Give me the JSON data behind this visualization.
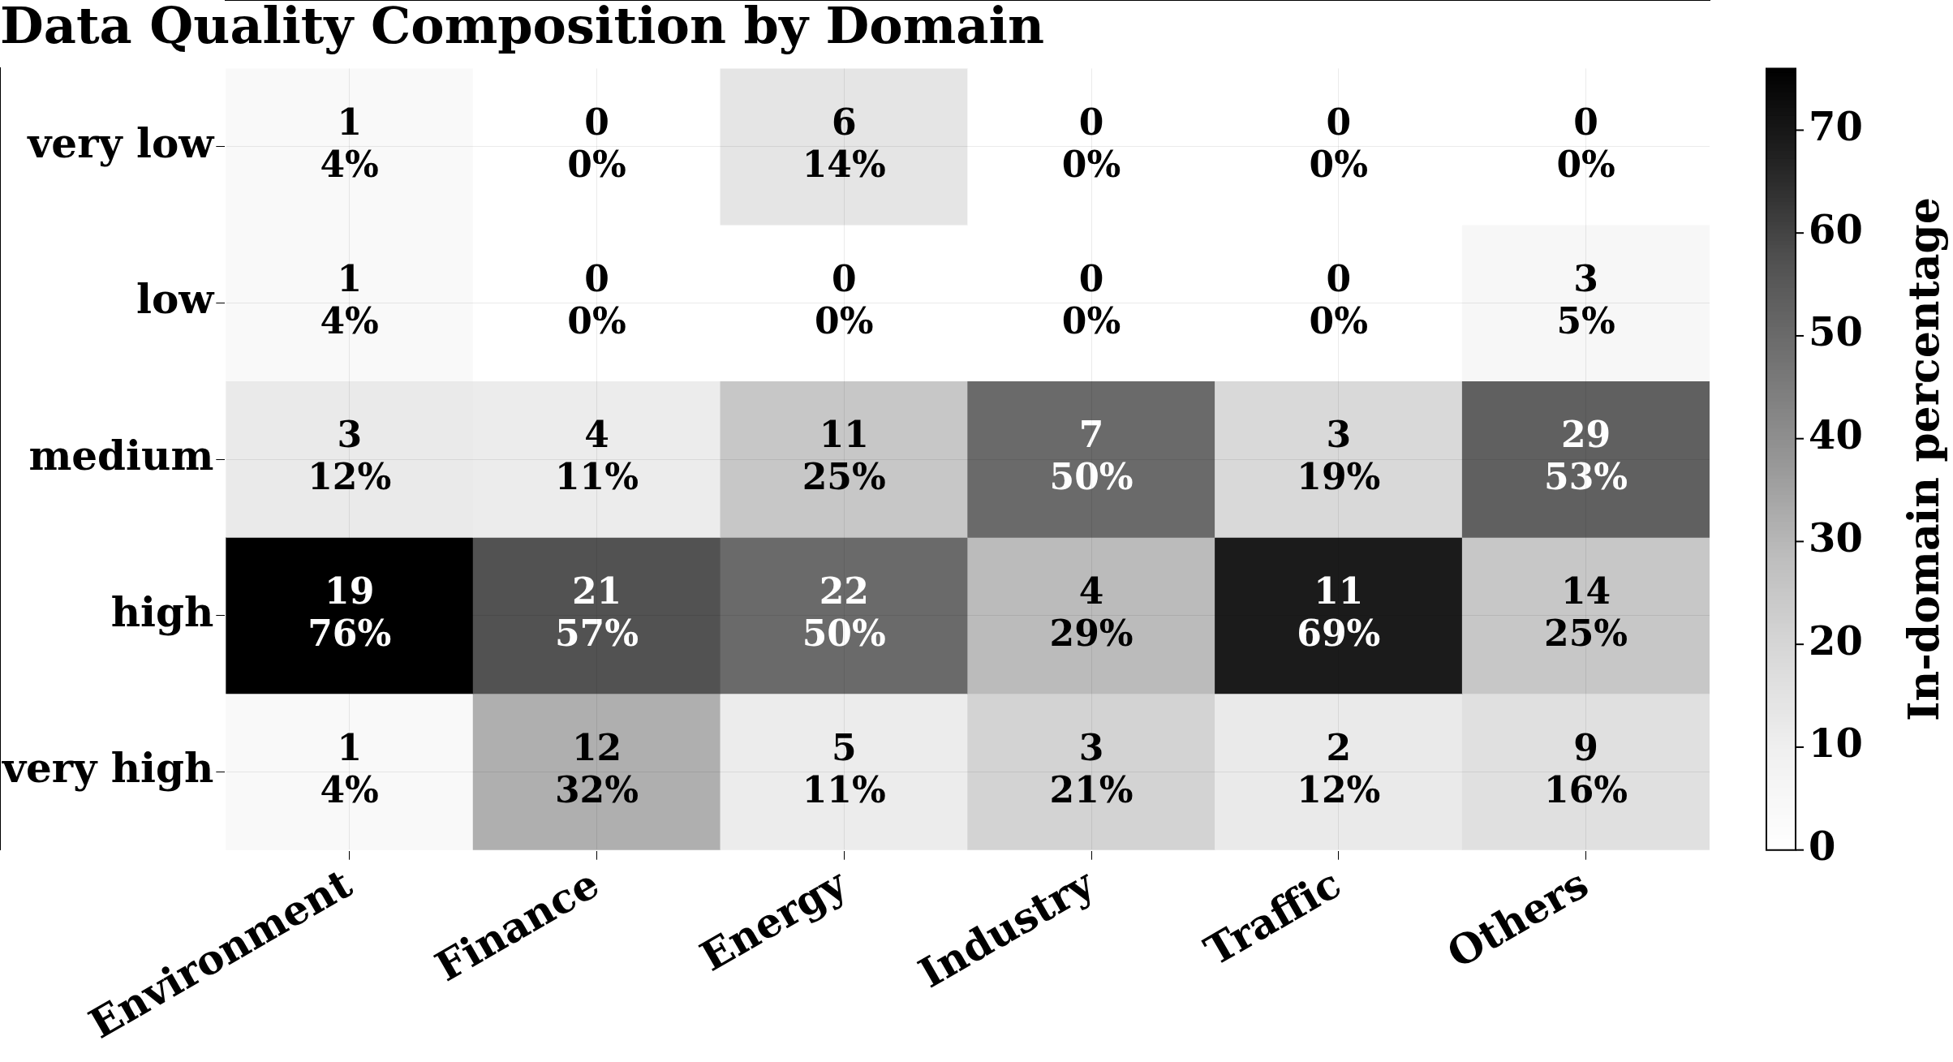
{
  "chart_data": {
    "type": "heatmap",
    "title": "Data Quality Composition by Domain",
    "categories": [
      "Environment",
      "Finance",
      "Energy",
      "Industry",
      "Traffic",
      "Others"
    ],
    "y_categories": [
      "very low",
      "low",
      "medium",
      "high",
      "very high"
    ],
    "cells": [
      [
        4,
        0,
        14,
        0,
        0,
        0
      ],
      [
        4,
        0,
        0,
        0,
        0,
        5
      ],
      [
        12,
        11,
        25,
        50,
        19,
        53
      ],
      [
        76,
        57,
        50,
        29,
        69,
        25
      ],
      [
        4,
        32,
        11,
        21,
        12,
        16
      ]
    ],
    "cell_labels": [
      [
        "1\n4%",
        "0\n0%",
        "6\n14%",
        "0\n0%",
        "0\n0%",
        "0\n0%"
      ],
      [
        "1\n4%",
        "0\n0%",
        "0\n0%",
        "0\n0%",
        "0\n0%",
        "3\n5%"
      ],
      [
        "3\n12%",
        "4\n11%",
        "11\n25%",
        "7\n50%",
        "3\n19%",
        "29\n53%"
      ],
      [
        "19\n76%",
        "21\n57%",
        "22\n50%",
        "4\n29%",
        "11\n69%",
        "14\n25%"
      ],
      [
        "1\n4%",
        "12\n32%",
        "5\n11%",
        "3\n21%",
        "2\n12%",
        "9\n16%"
      ]
    ],
    "clim": [
      0,
      76
    ],
    "cticks": [
      0,
      10,
      20,
      30,
      40,
      50,
      60,
      70
    ],
    "clabel": "In-domain percentage",
    "grid": true
  }
}
